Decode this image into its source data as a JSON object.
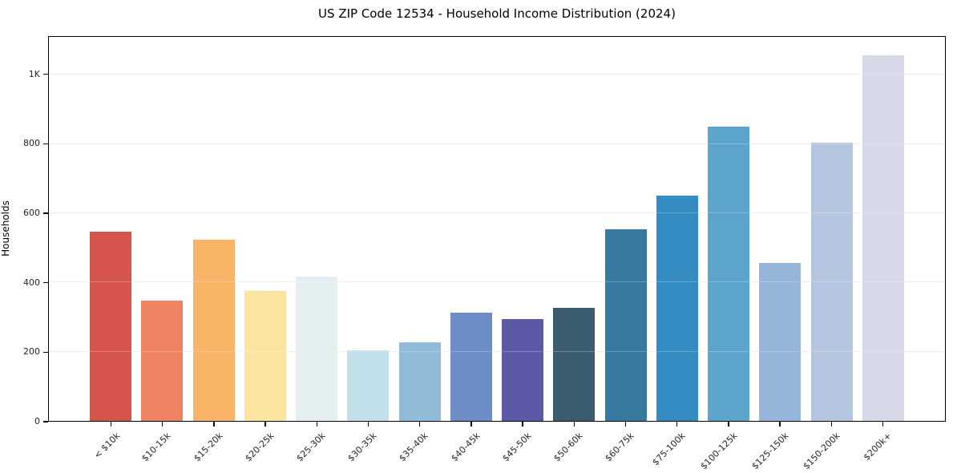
{
  "chart_data": {
    "type": "bar",
    "title": "US ZIP Code 12534 - Household Income Distribution (2024)",
    "xlabel": "",
    "ylabel": "Households",
    "ylim": [
      0,
      1110
    ],
    "grid": "horizontal",
    "legend": "none",
    "yticks": [
      {
        "value": 0,
        "label": "0"
      },
      {
        "value": 200,
        "label": "200"
      },
      {
        "value": 400,
        "label": "400"
      },
      {
        "value": 600,
        "label": "600"
      },
      {
        "value": 800,
        "label": "800"
      },
      {
        "value": 1000,
        "label": "1K"
      }
    ],
    "categories": [
      "< $10k",
      "$10-15k",
      "$15-20k",
      "$20-25k",
      "$25-30k",
      "$30-35k",
      "$35-40k",
      "$40-45k",
      "$45-50k",
      "$50-60k",
      "$60-75k",
      "$75-100k",
      "$100-125k",
      "$125-150k",
      "$150-200k",
      "$200k+"
    ],
    "values": [
      548,
      347,
      523,
      376,
      418,
      205,
      228,
      313,
      295,
      327,
      553,
      651,
      851,
      456,
      804,
      1056
    ],
    "bar_colors": [
      "#d5544c",
      "#ef8260",
      "#f9b468",
      "#fbe3a0",
      "#e4eff1",
      "#c2dfec",
      "#90bcda",
      "#6c8dc5",
      "#5c59a6",
      "#3a5c6f",
      "#367aa0",
      "#348cc2",
      "#5ba5cd",
      "#95b6d8",
      "#b5c5df",
      "#d7d8e8"
    ]
  }
}
